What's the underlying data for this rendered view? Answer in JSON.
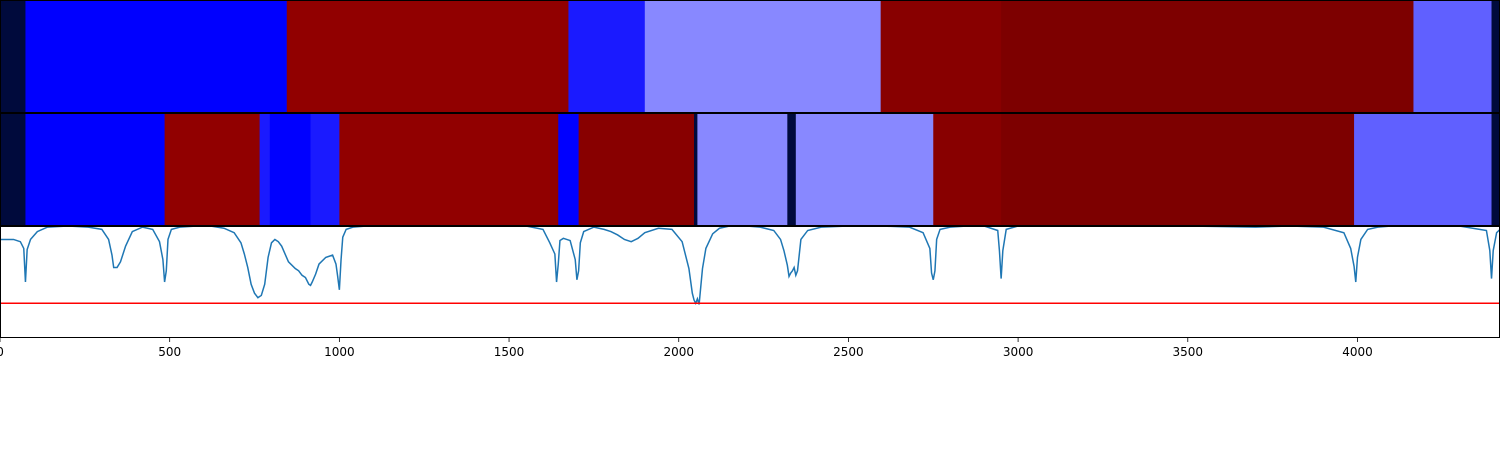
{
  "chart_data": {
    "type": "heatmap",
    "xlim": [
      0,
      4420
    ],
    "x_ticks": [
      0,
      500,
      1000,
      1500,
      2000,
      2500,
      3000,
      3500,
      4000
    ],
    "x_tick_labels": [
      "0",
      "500",
      "1000",
      "1500",
      "2000",
      "2500",
      "3000",
      "3500",
      "4000"
    ],
    "grid": false,
    "tracks": [
      {
        "segments": [
          {
            "start": 0,
            "end": 75,
            "color": "#000a3c"
          },
          {
            "start": 75,
            "end": 845,
            "color": "#0000ff"
          },
          {
            "start": 845,
            "end": 1675,
            "color": "#910000"
          },
          {
            "start": 1675,
            "end": 1900,
            "color": "#1a1aff"
          },
          {
            "start": 1900,
            "end": 2595,
            "color": "#8888ff"
          },
          {
            "start": 2595,
            "end": 2950,
            "color": "#880000"
          },
          {
            "start": 2950,
            "end": 4165,
            "color": "#7d0000"
          },
          {
            "start": 4165,
            "end": 4395,
            "color": "#6060ff"
          },
          {
            "start": 4395,
            "end": 4420,
            "color": "#000a3c"
          }
        ]
      },
      {
        "segments": [
          {
            "start": 0,
            "end": 75,
            "color": "#000a3c"
          },
          {
            "start": 75,
            "end": 485,
            "color": "#0000ff"
          },
          {
            "start": 485,
            "end": 765,
            "color": "#910000"
          },
          {
            "start": 765,
            "end": 795,
            "color": "#1a1aff"
          },
          {
            "start": 795,
            "end": 915,
            "color": "#0000ff"
          },
          {
            "start": 915,
            "end": 1000,
            "color": "#1a1aff"
          },
          {
            "start": 1000,
            "end": 1645,
            "color": "#910000"
          },
          {
            "start": 1645,
            "end": 1705,
            "color": "#0000ff"
          },
          {
            "start": 1705,
            "end": 2045,
            "color": "#880000"
          },
          {
            "start": 2045,
            "end": 2055,
            "color": "#000a3c"
          },
          {
            "start": 2055,
            "end": 2320,
            "color": "#8888ff"
          },
          {
            "start": 2320,
            "end": 2345,
            "color": "#000a3c"
          },
          {
            "start": 2345,
            "end": 2750,
            "color": "#8888ff"
          },
          {
            "start": 2750,
            "end": 2950,
            "color": "#880000"
          },
          {
            "start": 2950,
            "end": 3990,
            "color": "#7d0000"
          },
          {
            "start": 3990,
            "end": 4395,
            "color": "#6060ff"
          },
          {
            "start": 4395,
            "end": 4420,
            "color": "#000a3c"
          }
        ]
      }
    ],
    "line_panel": {
      "ylim": [
        0,
        1
      ],
      "line_color": "#1f77b4",
      "threshold": 0.31,
      "threshold_color": "#ff0000",
      "x": [
        0,
        20,
        40,
        60,
        70,
        75,
        80,
        90,
        110,
        140,
        200,
        260,
        300,
        320,
        330,
        335,
        345,
        355,
        370,
        390,
        420,
        450,
        470,
        480,
        485,
        490,
        495,
        505,
        530,
        580,
        620,
        660,
        690,
        710,
        720,
        730,
        740,
        750,
        760,
        765,
        770,
        780,
        790,
        800,
        810,
        820,
        830,
        850,
        870,
        880,
        890,
        900,
        910,
        915,
        920,
        930,
        940,
        960,
        980,
        990,
        995,
        1000,
        1005,
        1010,
        1020,
        1040,
        1080,
        1150,
        1250,
        1400,
        1550,
        1600,
        1620,
        1635,
        1640,
        1645,
        1650,
        1660,
        1680,
        1695,
        1700,
        1705,
        1710,
        1720,
        1750,
        1780,
        1800,
        1820,
        1840,
        1860,
        1880,
        1900,
        1940,
        1980,
        2010,
        2030,
        2040,
        2045,
        2050,
        2055,
        2060,
        2070,
        2080,
        2100,
        2120,
        2150,
        2200,
        2240,
        2280,
        2300,
        2310,
        2320,
        2325,
        2330,
        2335,
        2340,
        2345,
        2350,
        2360,
        2380,
        2420,
        2500,
        2600,
        2680,
        2720,
        2740,
        2745,
        2750,
        2755,
        2760,
        2770,
        2800,
        2850,
        2900,
        2940,
        2945,
        2950,
        2955,
        2965,
        3000,
        3500,
        3700,
        3800,
        3900,
        3960,
        3980,
        3990,
        3995,
        4000,
        4010,
        4030,
        4060,
        4100,
        4200,
        4300,
        4380,
        4390,
        4395,
        4400,
        4410,
        4420
      ],
      "y": [
        0.88,
        0.88,
        0.88,
        0.86,
        0.8,
        0.5,
        0.79,
        0.88,
        0.95,
        0.99,
        1.0,
        0.99,
        0.97,
        0.88,
        0.74,
        0.63,
        0.63,
        0.68,
        0.82,
        0.95,
        0.99,
        0.97,
        0.86,
        0.7,
        0.5,
        0.6,
        0.88,
        0.97,
        0.99,
        1.0,
        1.0,
        0.98,
        0.94,
        0.85,
        0.75,
        0.63,
        0.48,
        0.4,
        0.36,
        0.37,
        0.38,
        0.48,
        0.72,
        0.85,
        0.88,
        0.86,
        0.82,
        0.68,
        0.62,
        0.6,
        0.56,
        0.54,
        0.48,
        0.47,
        0.5,
        0.57,
        0.66,
        0.72,
        0.74,
        0.66,
        0.55,
        0.43,
        0.7,
        0.9,
        0.97,
        0.99,
        1.0,
        1.0,
        1.0,
        1.0,
        1.0,
        0.97,
        0.85,
        0.75,
        0.5,
        0.66,
        0.87,
        0.89,
        0.87,
        0.7,
        0.52,
        0.6,
        0.85,
        0.95,
        0.99,
        0.97,
        0.95,
        0.92,
        0.88,
        0.86,
        0.89,
        0.94,
        0.98,
        0.97,
        0.86,
        0.62,
        0.4,
        0.34,
        0.31,
        0.35,
        0.3,
        0.62,
        0.8,
        0.93,
        0.98,
        1.0,
        1.0,
        0.99,
        0.96,
        0.88,
        0.78,
        0.65,
        0.55,
        0.58,
        0.6,
        0.63,
        0.56,
        0.6,
        0.88,
        0.96,
        0.99,
        1.0,
        1.0,
        0.99,
        0.94,
        0.8,
        0.58,
        0.52,
        0.6,
        0.88,
        0.97,
        0.99,
        1.0,
        1.0,
        0.96,
        0.78,
        0.53,
        0.78,
        0.97,
        1.0,
        1.0,
        0.99,
        1.0,
        0.99,
        0.94,
        0.8,
        0.64,
        0.5,
        0.72,
        0.88,
        0.97,
        0.99,
        1.0,
        1.0,
        1.0,
        0.96,
        0.78,
        0.53,
        0.78,
        0.94,
        0.97
      ]
    }
  }
}
